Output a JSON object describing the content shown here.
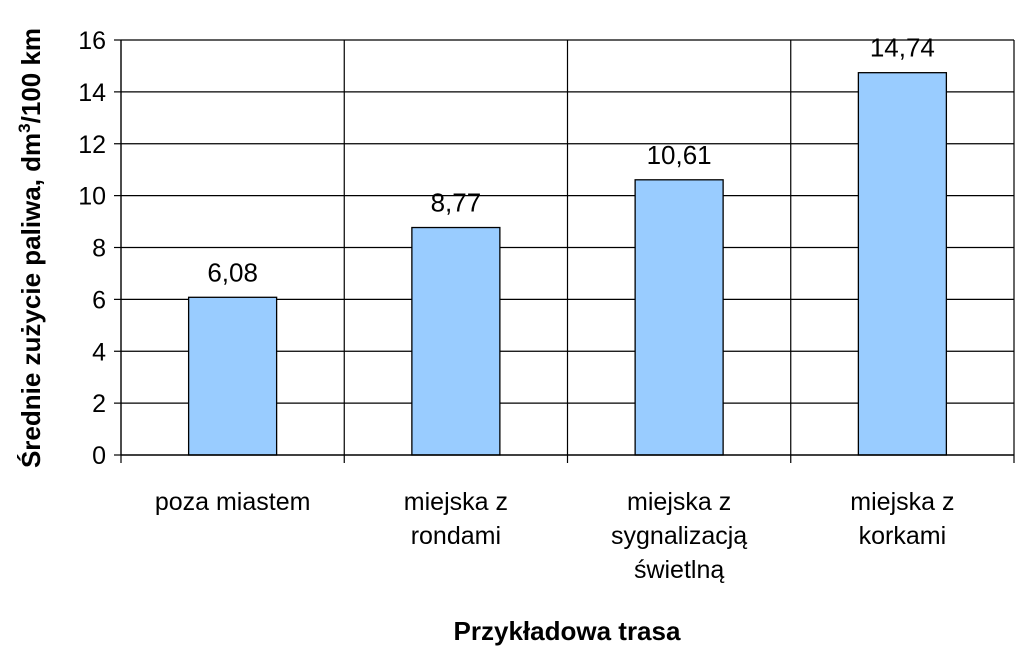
{
  "chart_data": {
    "type": "bar",
    "title": "",
    "xlabel": "Przykładowa trasa",
    "ylabel": "Średnie zużycie paliwa, dm³/100 km",
    "ylabel_parts": {
      "before": "Średnie zużycie paliwa, dm",
      "superscript": "3",
      "after": "/100 km"
    },
    "categories": [
      [
        "poza miastem"
      ],
      [
        "miejska z",
        "rondami"
      ],
      [
        "miejska z",
        "sygnalizacją",
        "świetlną"
      ],
      [
        "miejska z",
        "korkami"
      ]
    ],
    "values": [
      6.08,
      8.77,
      10.61,
      14.74
    ],
    "value_labels": [
      "6,08",
      "8,77",
      "10,61",
      "14,74"
    ],
    "y_ticks": [
      "0",
      "2",
      "4",
      "6",
      "8",
      "10",
      "12",
      "14",
      "16"
    ],
    "ylim": [
      0,
      16
    ],
    "grid": true,
    "legend": "none",
    "colors": {
      "bar_fill": "#99ccff",
      "bar_stroke": "#000000",
      "grid": "#000000",
      "axis": "#000000",
      "background": "#ffffff"
    }
  }
}
